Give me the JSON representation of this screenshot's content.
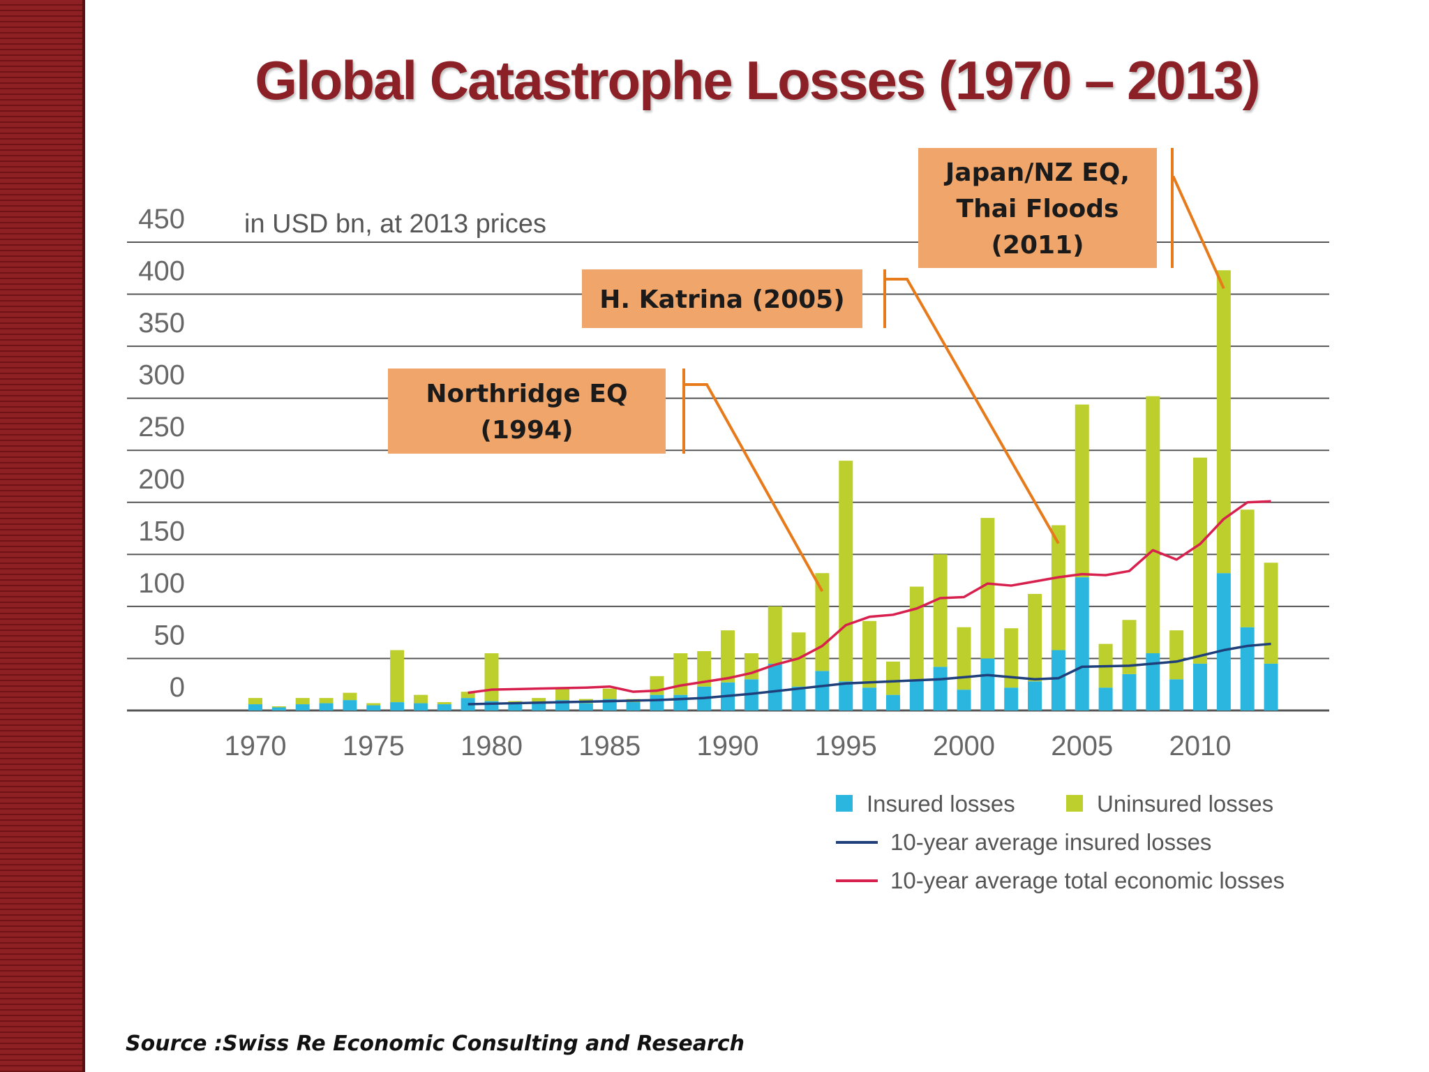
{
  "title": "Global Catastrophe Losses (1970 – 2013)",
  "source": "Source :Swiss Re Economic Consulting and Research",
  "colors": {
    "insured": "#2bb6e0",
    "uninsured": "#bccf2c",
    "avg_insured": "#1f3f7a",
    "avg_total": "#d8204e",
    "annotation_box": "#f0a56a",
    "annotation_line": "#e77a1a",
    "gridline": "#555555"
  },
  "chart_data": {
    "type": "bar",
    "stacked": true,
    "unit_label": "in USD bn, at 2013 prices",
    "ylim": [
      0,
      450
    ],
    "yticks": [
      0,
      50,
      100,
      150,
      200,
      250,
      300,
      350,
      400,
      450
    ],
    "xticks": [
      1970,
      1975,
      1980,
      1985,
      1990,
      1995,
      2000,
      2005,
      2010
    ],
    "x": [
      1970,
      1971,
      1972,
      1973,
      1974,
      1975,
      1976,
      1977,
      1978,
      1979,
      1980,
      1981,
      1982,
      1983,
      1984,
      1985,
      1986,
      1987,
      1988,
      1989,
      1990,
      1991,
      1992,
      1993,
      1994,
      1995,
      1996,
      1997,
      1998,
      1999,
      2000,
      2001,
      2002,
      2003,
      2004,
      2005,
      2006,
      2007,
      2008,
      2009,
      2010,
      2011,
      2012,
      2013
    ],
    "series": [
      {
        "name": "Insured losses",
        "kind": "bar",
        "values": [
          6,
          3,
          6,
          7,
          10,
          5,
          8,
          7,
          6,
          12,
          9,
          7,
          8,
          10,
          7,
          11,
          8,
          15,
          15,
          23,
          27,
          30,
          45,
          23,
          38,
          28,
          22,
          15,
          30,
          42,
          20,
          50,
          22,
          28,
          58,
          128,
          22,
          35,
          55,
          30,
          45,
          132,
          80,
          45
        ]
      },
      {
        "name": "Uninsured losses",
        "kind": "bar",
        "values": [
          6,
          1,
          6,
          5,
          7,
          2,
          50,
          8,
          2,
          6,
          46,
          2,
          4,
          12,
          4,
          10,
          3,
          18,
          40,
          34,
          50,
          25,
          55,
          52,
          94,
          212,
          64,
          32,
          89,
          108,
          60,
          135,
          57,
          84,
          120,
          166,
          42,
          52,
          247,
          47,
          198,
          291,
          113,
          97
        ]
      },
      {
        "name": "10-year average insured losses",
        "kind": "line",
        "x": [
          1979,
          1981,
          1983,
          1985,
          1987,
          1989,
          1991,
          1993,
          1995,
          1997,
          1999,
          2001,
          2003,
          2004,
          2005,
          2007,
          2009,
          2011,
          2012,
          2013
        ],
        "values": [
          6,
          7,
          8,
          9,
          10,
          12,
          16,
          21,
          26,
          28,
          30,
          34,
          30,
          31,
          42,
          43,
          47,
          58,
          62,
          64
        ]
      },
      {
        "name": "10-year average total economic losses",
        "kind": "line",
        "x": [
          1979,
          1980,
          1982,
          1984,
          1985,
          1986,
          1987,
          1988,
          1990,
          1991,
          1992,
          1993,
          1994,
          1995,
          1996,
          1997,
          1998,
          1999,
          2000,
          2001,
          2002,
          2003,
          2004,
          2005,
          2006,
          2007,
          2008,
          2009,
          2010,
          2011,
          2012,
          2013
        ],
        "values": [
          17,
          20,
          21,
          22,
          23,
          18,
          19,
          24,
          31,
          36,
          44,
          50,
          62,
          82,
          90,
          92,
          98,
          108,
          109,
          122,
          120,
          124,
          128,
          131,
          130,
          134,
          154,
          145,
          160,
          184,
          200,
          201
        ]
      }
    ],
    "legend": {
      "placement": "bottom-right",
      "items": [
        {
          "label": "Insured losses",
          "marker": "square",
          "color": "#2bb6e0"
        },
        {
          "label": "Uninsured losses",
          "marker": "square",
          "color": "#bccf2c"
        },
        {
          "label": "10-year average insured losses",
          "marker": "line",
          "color": "#1f3f7a"
        },
        {
          "label": "10-year average total economic losses",
          "marker": "line",
          "color": "#d8204e"
        }
      ]
    },
    "annotations": [
      {
        "label_lines": [
          "Northridge EQ",
          "(1994)"
        ],
        "year": 1994
      },
      {
        "label_lines": [
          "H. Katrina (2005)"
        ],
        "year": 2004
      },
      {
        "label_lines": [
          "Japan/NZ EQ,",
          "Thai Floods",
          "(2011)"
        ],
        "year": 2011
      }
    ]
  }
}
